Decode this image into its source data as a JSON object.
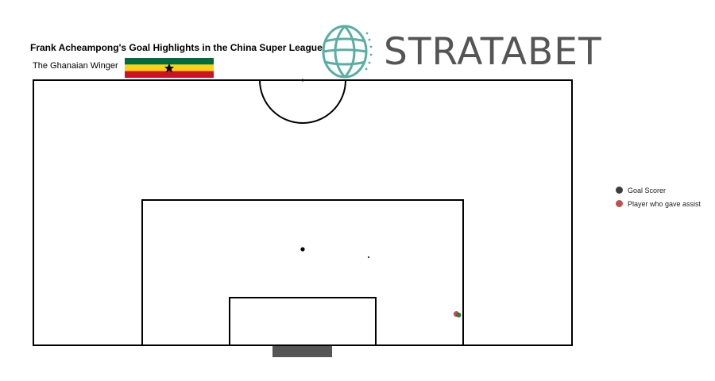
{
  "header": {
    "title": "Frank Acheampong's Goal Highlights in the China Super League",
    "subtitle": "The Ghanaian Winger",
    "flag_icon": "ghana-flag-icon",
    "flag_colors": {
      "top": "#ce1126",
      "middle": "#fcd116",
      "bottom": "#006b3f",
      "star": "#000000"
    }
  },
  "brand": {
    "logo_icon": "stratabet-globe-icon",
    "name": "STRATABET",
    "color": "#5aaea3"
  },
  "legend": {
    "items": [
      {
        "label": "Goal Scorer",
        "color": "#3d3d3d"
      },
      {
        "label": "Player who gave assist",
        "color": "#c05050"
      }
    ]
  },
  "chart_data": {
    "type": "scatter",
    "pitch": "half-pitch (attacking half, goal at bottom)",
    "axes": {
      "x_range": [
        0,
        68
      ],
      "y_range": [
        0,
        52.5
      ],
      "units": "metres"
    },
    "series": [
      {
        "name": "Goal Scorer",
        "color": "#3d3d3d",
        "points": [
          {
            "x": 53.7,
            "y": 6.0
          }
        ]
      },
      {
        "name": "Player who gave assist",
        "color": "#c05050",
        "points": [
          {
            "x": 53.4,
            "y": 6.2
          }
        ]
      },
      {
        "color": "#228b22",
        "points": [
          {
            "x": 53.7,
            "y": 6.0
          }
        ]
      }
    ],
    "lines": []
  }
}
